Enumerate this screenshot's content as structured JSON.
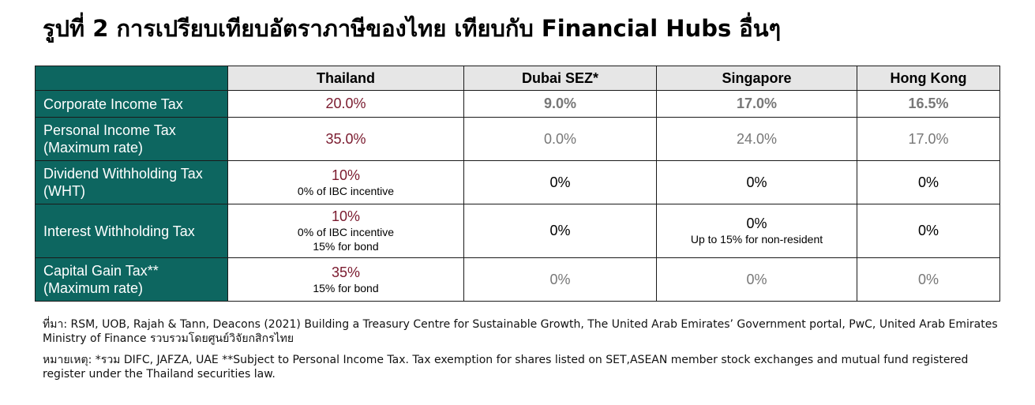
{
  "colors": {
    "header_dark": "#0d6660",
    "header_light": "#e6e6e6",
    "thailand_value": "#7a1a2e",
    "muted_value": "#777777",
    "strong_value": "#000000"
  },
  "title": "รูปที่ 2 การเปรียบเทียบอัตราภาษีของไทย เทียบกับ Financial Hubs อื่นๆ",
  "table": {
    "columns": [
      "",
      "Thailand",
      "Dubai SEZ*",
      "Singapore",
      "Hong Kong"
    ],
    "rows": [
      {
        "label": "Corporate Income Tax",
        "cells": [
          {
            "value": "20.0%",
            "note": "",
            "note2": ""
          },
          {
            "value": "9.0%",
            "note": "",
            "note2": ""
          },
          {
            "value": "17.0%",
            "note": "",
            "note2": ""
          },
          {
            "value": "16.5%",
            "note": "",
            "note2": ""
          }
        ]
      },
      {
        "label": "Personal Income Tax (Maximum rate)",
        "cells": [
          {
            "value": "35.0%",
            "note": "",
            "note2": ""
          },
          {
            "value": "0.0%",
            "note": "",
            "note2": ""
          },
          {
            "value": "24.0%",
            "note": "",
            "note2": ""
          },
          {
            "value": "17.0%",
            "note": "",
            "note2": ""
          }
        ]
      },
      {
        "label": "Dividend Withholding Tax (WHT)",
        "cells": [
          {
            "value": "10%",
            "note": "0% of IBC incentive",
            "note2": ""
          },
          {
            "value": "0%",
            "note": "",
            "note2": ""
          },
          {
            "value": "0%",
            "note": "",
            "note2": ""
          },
          {
            "value": "0%",
            "note": "",
            "note2": ""
          }
        ]
      },
      {
        "label": "Interest Withholding Tax",
        "cells": [
          {
            "value": "10%",
            "note": "0% of IBC incentive",
            "note2": "15% for bond"
          },
          {
            "value": "0%",
            "note": "",
            "note2": ""
          },
          {
            "value": "0%",
            "note": "Up to 15% for non-resident",
            "note2": ""
          },
          {
            "value": "0%",
            "note": "",
            "note2": ""
          }
        ]
      },
      {
        "label": "Capital Gain Tax** (Maximum rate)",
        "cells": [
          {
            "value": "35%",
            "note": "15% for bond",
            "note2": ""
          },
          {
            "value": "0%",
            "note": "",
            "note2": ""
          },
          {
            "value": "0%",
            "note": "",
            "note2": ""
          },
          {
            "value": "0%",
            "note": "",
            "note2": ""
          }
        ]
      }
    ]
  },
  "source_text": "ที่มา: RSM, UOB, Rajah & Tann, Deacons (2021) Building a Treasury Centre for Sustainable Growth, The United Arab Emirates’ Government portal, PwC, United Arab Emirates Ministry of Finance รวบรวมโดยศูนย์วิจัยกสิกรไทย",
  "remark_text": "หมายเหตุ: *รวม DIFC, JAFZA, UAE  **Subject to Personal Income Tax. Tax exemption for shares listed on SET,ASEAN member stock exchanges and mutual fund registered register under the Thailand securities law."
}
